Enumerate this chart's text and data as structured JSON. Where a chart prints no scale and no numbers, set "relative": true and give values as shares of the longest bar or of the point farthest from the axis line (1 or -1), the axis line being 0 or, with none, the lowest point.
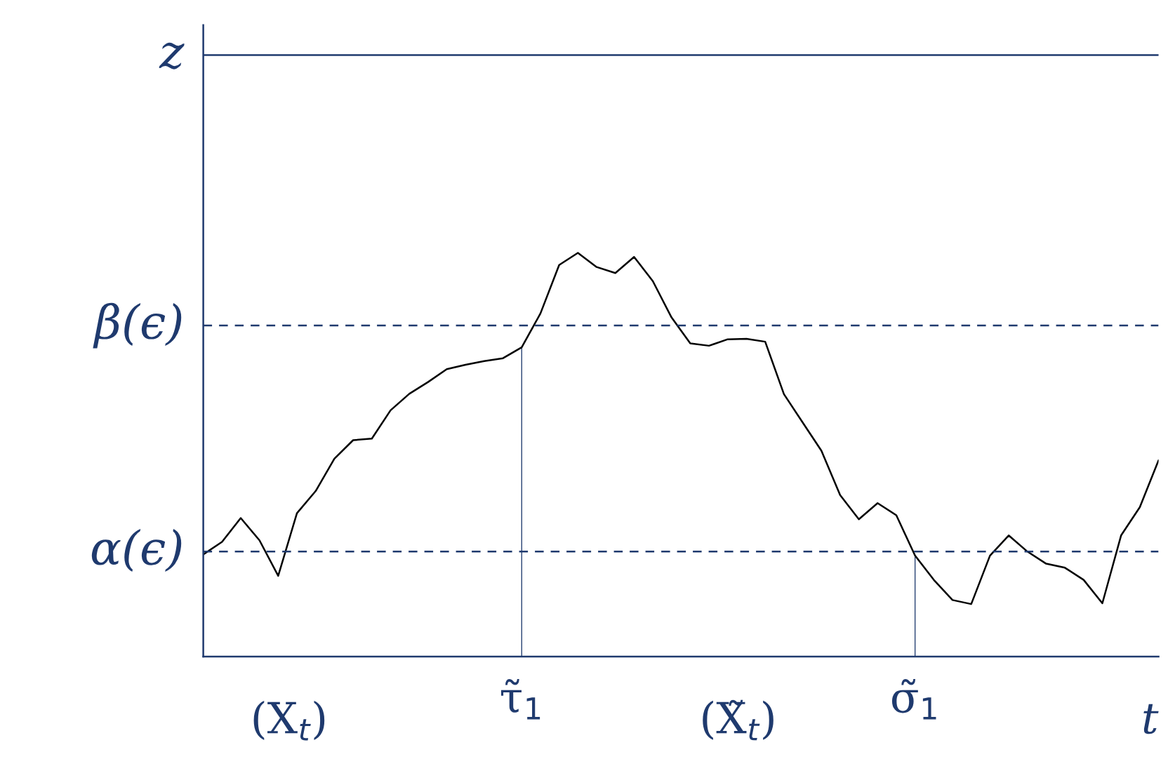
{
  "chart_data": {
    "type": "line",
    "relative": true,
    "xlabel": "t",
    "categories": [
      null,
      null,
      null,
      null,
      null,
      null,
      null,
      null,
      null,
      null,
      null,
      null,
      null,
      null,
      null,
      null,
      null,
      "τ̃$_{1}$",
      null,
      null,
      null,
      null,
      null,
      null,
      null,
      null,
      null,
      null,
      null,
      null,
      null,
      null,
      null,
      null,
      null,
      null,
      null,
      null,
      "σ̃$_{1}$",
      null,
      null,
      null,
      null,
      null,
      null,
      null,
      null,
      null,
      null,
      null,
      null,
      null
    ],
    "annotations": [
      "(X$_{t}$)",
      "(X̃$_{t}$)"
    ],
    "ref_lines": [
      {
        "axis": "y",
        "value": 1.49,
        "label": "z",
        "color": "#1f3a6e",
        "line_style": "solid"
      },
      {
        "axis": "y",
        "value": 0.82,
        "label": "β(ϵ)",
        "color": "#1f3a6e",
        "line_style": "dashed"
      },
      {
        "axis": "y",
        "value": 0.26,
        "label": "α(ϵ)",
        "color": "#1f3a6e",
        "line_style": "dashed"
      }
    ],
    "series": [
      {
        "color": "#000000",
        "values": [
          0.253,
          0.284,
          0.343,
          0.288,
          0.2,
          0.355,
          0.41,
          0.49,
          0.536,
          0.54,
          0.61,
          0.651,
          0.68,
          0.712,
          0.723,
          0.732,
          0.739,
          0.766,
          0.85,
          0.97,
          1.0,
          0.965,
          0.95,
          0.99,
          0.93,
          0.84,
          0.776,
          0.77,
          0.786,
          0.787,
          0.78,
          0.65,
          0.58,
          0.51,
          0.4,
          0.34,
          0.38,
          0.35,
          0.25,
          0.19,
          0.14,
          0.13,
          0.25,
          0.3,
          0.26,
          0.23,
          0.22,
          0.19,
          0.132,
          0.3,
          0.37,
          0.486
        ]
      },
      {
        "type": "bar",
        "color": "#1f3a6e",
        "values": [
          null,
          null,
          null,
          null,
          null,
          null,
          null,
          null,
          null,
          null,
          null,
          null,
          null,
          null,
          null,
          null,
          null,
          0.766,
          null,
          null,
          null,
          null,
          null,
          null,
          null,
          null,
          null,
          null,
          null,
          null,
          null,
          null,
          null,
          null,
          null,
          null,
          null,
          null,
          0.25,
          null,
          null,
          null,
          null,
          null,
          null,
          null,
          null,
          null,
          null,
          null,
          null,
          null
        ]
      }
    ]
  }
}
